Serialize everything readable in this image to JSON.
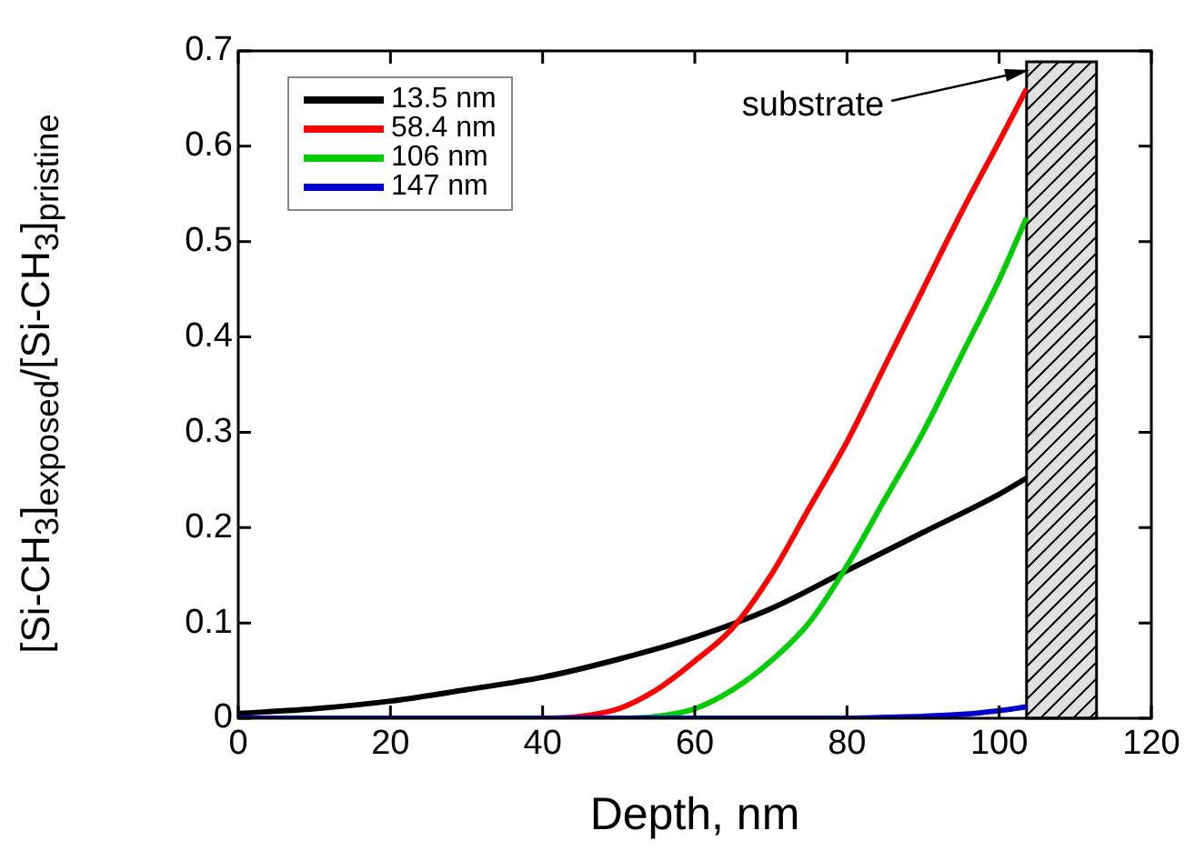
{
  "chart_data": {
    "type": "line",
    "xlabel": "Depth, nm",
    "ylabel": "[Si-CH$_{3}$]$_{exposed}$/[Si-CH$_{3}$]$_{pristine}$",
    "xlim": [
      0,
      120
    ],
    "xticks": [
      0,
      20,
      40,
      60,
      80,
      100,
      120
    ],
    "ylim": [
      0,
      0.7
    ],
    "yticks": [
      0,
      0.1,
      0.2,
      0.3,
      0.4,
      0.5,
      0.6,
      0.7
    ],
    "legend": "top left",
    "grid": false,
    "marker": "none",
    "line_style": "solid",
    "series": [
      {
        "name": "13.5 nm",
        "color": "#000000",
        "x": [
          0,
          10,
          20,
          30,
          40,
          50,
          60,
          70,
          80,
          90,
          100,
          103.6
        ],
        "values": [
          0.005,
          0.01,
          0.018,
          0.03,
          0.043,
          0.062,
          0.085,
          0.115,
          0.155,
          0.195,
          0.235,
          0.252
        ]
      },
      {
        "name": "58.4 nm",
        "color": "#ff0000",
        "x": [
          0,
          40,
          45,
          50,
          55,
          60,
          65,
          70,
          75,
          80,
          85,
          90,
          95,
          100,
          103.6
        ],
        "values": [
          0,
          0,
          0.002,
          0.01,
          0.03,
          0.06,
          0.095,
          0.15,
          0.22,
          0.29,
          0.37,
          0.45,
          0.53,
          0.605,
          0.66
        ]
      },
      {
        "name": "106 nm",
        "color": "#00cc00",
        "x": [
          0,
          50,
          55,
          60,
          65,
          70,
          75,
          80,
          85,
          90,
          95,
          100,
          103.6
        ],
        "values": [
          0,
          0,
          0.002,
          0.01,
          0.03,
          0.06,
          0.1,
          0.16,
          0.23,
          0.3,
          0.38,
          0.46,
          0.525
        ]
      },
      {
        "name": "147 nm",
        "color": "#0000cc",
        "x": [
          0,
          80,
          85,
          90,
          95,
          100,
          103.6
        ],
        "values": [
          0,
          0,
          0.001,
          0.002,
          0.004,
          0.008,
          0.012
        ]
      }
    ],
    "bands": [
      {
        "axis": "x",
        "from": 103.6,
        "to": 112.8,
        "color": "#000000"
      }
    ],
    "annotations": [
      {
        "text": "substrate",
        "x": 104,
        "y": 0.68
      }
    ]
  }
}
